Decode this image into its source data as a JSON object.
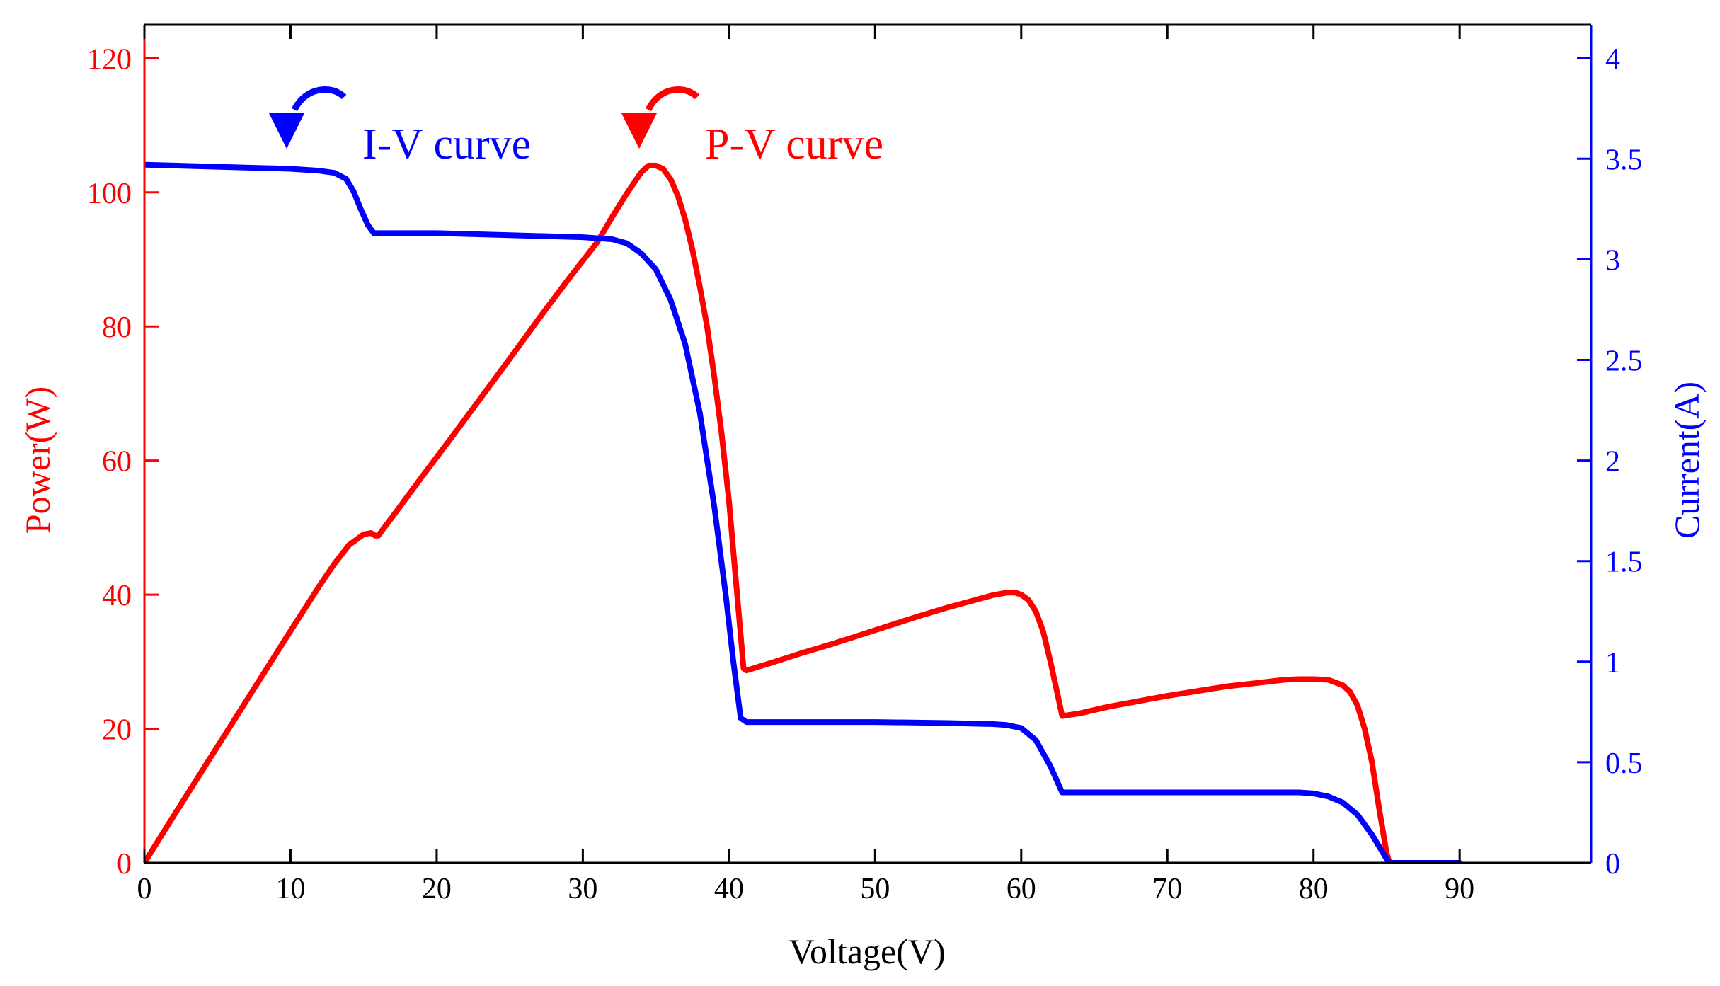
{
  "chart_data": {
    "type": "line",
    "xlabel": "Voltage(V)",
    "ylabel_left": "Power(W)",
    "ylabel_right": "Current(A)",
    "xlim": [
      0,
      99
    ],
    "ylim_left": [
      0,
      125
    ],
    "ylim_right": [
      0,
      4.166
    ],
    "xticks": [
      0,
      10,
      20,
      30,
      40,
      50,
      60,
      70,
      80,
      90
    ],
    "yticks_left": [
      0,
      20,
      40,
      60,
      80,
      100,
      120
    ],
    "yticks_right": [
      0,
      0.5,
      1,
      1.5,
      2,
      2.5,
      3,
      3.5,
      4
    ],
    "grid": false,
    "series": [
      {
        "name": "P-V curve",
        "axis": "left",
        "color": "#ff0000",
        "points": [
          [
            0,
            0
          ],
          [
            2,
            7
          ],
          [
            4,
            13.9
          ],
          [
            6,
            20.8
          ],
          [
            8,
            27.7
          ],
          [
            10,
            34.6
          ],
          [
            12,
            41.4
          ],
          [
            13,
            44.6
          ],
          [
            14,
            47.4
          ],
          [
            15,
            49
          ],
          [
            15.5,
            49.2
          ],
          [
            15.8,
            48.8
          ],
          [
            16,
            48.8
          ],
          [
            17,
            51.7
          ],
          [
            19,
            57.6
          ],
          [
            21,
            63.4
          ],
          [
            23,
            69.3
          ],
          [
            25,
            75.2
          ],
          [
            27,
            81.2
          ],
          [
            29,
            87
          ],
          [
            31,
            92.6
          ],
          [
            32,
            96.3
          ],
          [
            33,
            99.8
          ],
          [
            34,
            103
          ],
          [
            34.5,
            104
          ],
          [
            35,
            104
          ],
          [
            35.5,
            103.5
          ],
          [
            36,
            102
          ],
          [
            36.5,
            99.5
          ],
          [
            37,
            96
          ],
          [
            37.5,
            91.5
          ],
          [
            38,
            86
          ],
          [
            38.5,
            80
          ],
          [
            39,
            72.5
          ],
          [
            39.5,
            64
          ],
          [
            40,
            54
          ],
          [
            40.4,
            44
          ],
          [
            40.8,
            34
          ],
          [
            41,
            29
          ],
          [
            41.2,
            28.7
          ],
          [
            43,
            29.9
          ],
          [
            45,
            31.3
          ],
          [
            47,
            32.6
          ],
          [
            49,
            34
          ],
          [
            51,
            35.4
          ],
          [
            53,
            36.8
          ],
          [
            55,
            38.1
          ],
          [
            57,
            39.3
          ],
          [
            58,
            39.9
          ],
          [
            59,
            40.3
          ],
          [
            59.6,
            40.3
          ],
          [
            60,
            40
          ],
          [
            60.5,
            39.2
          ],
          [
            61,
            37.5
          ],
          [
            61.5,
            34.5
          ],
          [
            62,
            30
          ],
          [
            62.5,
            25
          ],
          [
            62.8,
            21.9
          ],
          [
            64,
            22.3
          ],
          [
            66,
            23.3
          ],
          [
            68,
            24.1
          ],
          [
            70,
            24.9
          ],
          [
            72,
            25.6
          ],
          [
            74,
            26.3
          ],
          [
            76,
            26.8
          ],
          [
            78,
            27.3
          ],
          [
            79,
            27.4
          ],
          [
            80,
            27.4
          ],
          [
            81,
            27.3
          ],
          [
            82,
            26.5
          ],
          [
            82.5,
            25.5
          ],
          [
            83,
            23.5
          ],
          [
            83.5,
            20
          ],
          [
            84,
            15
          ],
          [
            84.5,
            8
          ],
          [
            85,
            1.5
          ],
          [
            85.2,
            0
          ],
          [
            90,
            0
          ]
        ]
      },
      {
        "name": "I-V curve",
        "axis": "right",
        "color": "#0000ff",
        "points": [
          [
            0,
            3.47
          ],
          [
            5,
            3.46
          ],
          [
            10,
            3.45
          ],
          [
            12,
            3.44
          ],
          [
            13,
            3.43
          ],
          [
            13.8,
            3.4
          ],
          [
            14.3,
            3.34
          ],
          [
            14.8,
            3.25
          ],
          [
            15.3,
            3.17
          ],
          [
            15.7,
            3.13
          ],
          [
            20,
            3.13
          ],
          [
            25,
            3.12
          ],
          [
            30,
            3.11
          ],
          [
            32,
            3.1
          ],
          [
            33,
            3.08
          ],
          [
            34,
            3.03
          ],
          [
            35,
            2.95
          ],
          [
            36,
            2.8
          ],
          [
            37,
            2.58
          ],
          [
            38,
            2.24
          ],
          [
            39,
            1.77
          ],
          [
            39.8,
            1.32
          ],
          [
            40.3,
            1
          ],
          [
            40.8,
            0.72
          ],
          [
            41.2,
            0.7
          ],
          [
            45,
            0.7
          ],
          [
            50,
            0.7
          ],
          [
            55,
            0.695
          ],
          [
            58,
            0.69
          ],
          [
            59,
            0.685
          ],
          [
            60,
            0.67
          ],
          [
            61,
            0.61
          ],
          [
            62,
            0.48
          ],
          [
            62.8,
            0.35
          ],
          [
            65,
            0.35
          ],
          [
            70,
            0.35
          ],
          [
            75,
            0.35
          ],
          [
            79,
            0.35
          ],
          [
            80,
            0.345
          ],
          [
            81,
            0.33
          ],
          [
            82,
            0.3
          ],
          [
            83,
            0.24
          ],
          [
            84,
            0.14
          ],
          [
            85,
            0.02
          ],
          [
            85.2,
            0
          ],
          [
            90,
            0
          ]
        ]
      }
    ],
    "annotations": [
      {
        "text": "I-V curve",
        "color": "#0000ff"
      },
      {
        "text": "P-V curve",
        "color": "#ff0000"
      }
    ]
  }
}
